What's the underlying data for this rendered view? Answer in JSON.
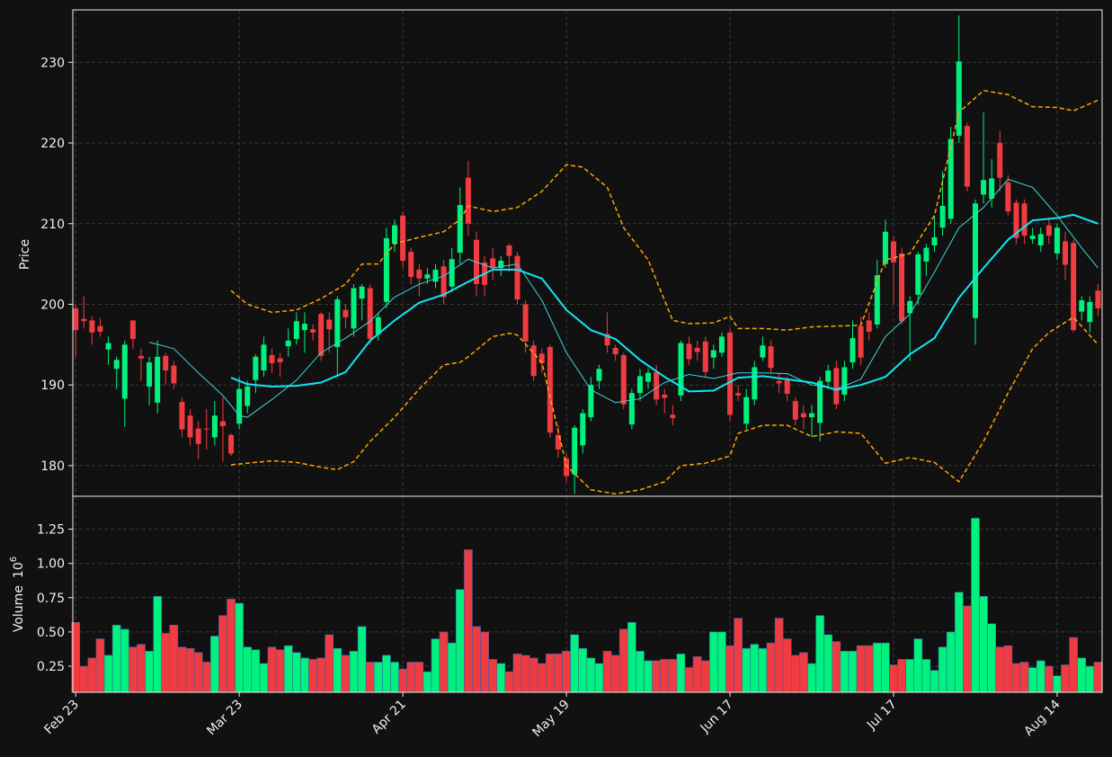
{
  "chart_data": {
    "type": "candlestick",
    "ylabel": "Price",
    "categories": [
      "Feb 23",
      null,
      null,
      null,
      null,
      null,
      null,
      null,
      null,
      null,
      null,
      null,
      null,
      null,
      null,
      null,
      null,
      null,
      null,
      null,
      "Mar 23",
      null,
      null,
      null,
      null,
      null,
      null,
      null,
      null,
      null,
      null,
      null,
      null,
      null,
      null,
      null,
      null,
      null,
      null,
      null,
      "Apr 21",
      null,
      null,
      null,
      null,
      null,
      null,
      null,
      null,
      null,
      null,
      null,
      null,
      null,
      null,
      null,
      null,
      null,
      null,
      null,
      "May 19",
      null,
      null,
      null,
      null,
      null,
      null,
      null,
      null,
      null,
      null,
      null,
      null,
      null,
      null,
      null,
      null,
      null,
      null,
      null,
      "Jun 17",
      null,
      null,
      null,
      null,
      null,
      null,
      null,
      null,
      null,
      null,
      null,
      null,
      null,
      null,
      null,
      null,
      null,
      null,
      null,
      "Jul 17",
      null,
      null,
      null,
      null,
      null,
      null,
      null,
      null,
      null,
      null,
      null,
      null,
      null,
      null,
      null,
      null,
      null,
      null,
      null,
      "Aug 14",
      null,
      null,
      null,
      null,
      null
    ],
    "xlim": [
      -0.35,
      125.5
    ],
    "xticks": [
      0,
      20,
      40,
      60,
      80,
      100,
      120
    ],
    "ylim": [
      176.2,
      236.5
    ],
    "yticks": [
      180,
      190,
      200,
      210,
      220,
      230
    ],
    "grid": true,
    "up_color": "#00f27e",
    "down_color": "#f03c41",
    "open": [
      199.5,
      198.2,
      198,
      197.3,
      194.4,
      192,
      188.3,
      198,
      193.6,
      189.8,
      187.8,
      193.6,
      192.4,
      187.9,
      186.2,
      184.6,
      184.6,
      183.5,
      185.5,
      183.8,
      185.2,
      187.4,
      190.6,
      191.8,
      193.7,
      193.3,
      194.8,
      195.7,
      196.8,
      196.9,
      198.8,
      198.1,
      194.7,
      199.3,
      197,
      200.7,
      202,
      196.3,
      200.3,
      207.5,
      211,
      206.5,
      204.3,
      203.2,
      202.8,
      204.7,
      202.2,
      206.4,
      215.7,
      208,
      205.2,
      205.7,
      204.5,
      207.3,
      206,
      200,
      194.9,
      193.9,
      194.7,
      183.8,
      180.9,
      178.9,
      182.5,
      186,
      190.5,
      196.3,
      194.6,
      193.7,
      185.1,
      189,
      190.4,
      191.6,
      188.8,
      186.3,
      188.7,
      195.1,
      194.6,
      195.4,
      193.4,
      194,
      196.5,
      189,
      185.2,
      188.2,
      193.4,
      194.8,
      190.5,
      190.6,
      188,
      186.5,
      186,
      185.3,
      190.4,
      192.1,
      188.8,
      192.8,
      197.3,
      198,
      197.5,
      205,
      207.8,
      206.3,
      198.9,
      201.2,
      205.3,
      207.3,
      209.5,
      210.6,
      220.9,
      222.1,
      198.3,
      213.6,
      213.1,
      220,
      215.1,
      212.6,
      212.5,
      208.1,
      207.3,
      209.8,
      206.3,
      207.8,
      207.6,
      199.1,
      197.8,
      201.7
    ],
    "high": [
      200,
      201,
      198.5,
      198.3,
      196,
      193.5,
      195.5,
      198,
      194.5,
      193.5,
      195.5,
      194,
      193,
      188.5,
      187,
      185.5,
      187,
      188,
      188.5,
      184,
      191,
      190.5,
      193.8,
      196,
      194.5,
      194,
      197,
      199,
      199,
      197.5,
      199,
      199,
      201,
      200,
      202.5,
      202.5,
      202.5,
      199,
      209.5,
      210.5,
      211.5,
      207,
      205,
      204.5,
      205,
      205.5,
      207,
      214.5,
      217.8,
      209,
      206,
      207,
      206,
      207.5,
      206.5,
      200.5,
      195.5,
      194.5,
      195,
      185,
      181.5,
      185,
      187,
      191,
      192.5,
      199,
      195,
      194,
      189.5,
      192,
      192,
      192.5,
      189.5,
      187.5,
      195.5,
      196,
      195.5,
      196,
      195,
      196.5,
      197,
      190,
      189.5,
      193,
      196,
      195.5,
      191.5,
      191,
      188.5,
      187.5,
      187.5,
      191,
      192.5,
      193,
      193,
      198,
      198.5,
      199,
      205.5,
      210.5,
      208.5,
      207,
      201,
      206.5,
      207.5,
      211,
      216.5,
      222,
      235.8,
      222.5,
      213,
      223.8,
      218,
      221.5,
      216,
      213,
      213,
      209.5,
      209.5,
      210.5,
      210,
      209,
      208,
      201,
      201,
      202.5
    ],
    "low": [
      193.5,
      197,
      195,
      196,
      192.5,
      189.5,
      184.8,
      194.5,
      190.5,
      187.5,
      186.5,
      190,
      189.5,
      183.5,
      182.5,
      180.8,
      182,
      182.5,
      180.5,
      181.2,
      184.5,
      186.5,
      189,
      191,
      191.5,
      191,
      193.5,
      195,
      194,
      195.5,
      193,
      194,
      191,
      197,
      196,
      198,
      195,
      195.5,
      199.5,
      206.5,
      204.5,
      202.5,
      201,
      202.5,
      202,
      200,
      201.5,
      205,
      208.5,
      201,
      201,
      203,
      203.5,
      204,
      200,
      194,
      190.5,
      191.5,
      183.5,
      181,
      178,
      176.5,
      181.5,
      185.5,
      189.5,
      194,
      193,
      187,
      184.5,
      188,
      189.5,
      187.5,
      186.5,
      185,
      188,
      192.5,
      193,
      191,
      192,
      193.5,
      185.5,
      188,
      184.5,
      187.5,
      193,
      191.5,
      189,
      188,
      185,
      184.5,
      183.5,
      183,
      189.5,
      187,
      188,
      192,
      192.5,
      195.5,
      197,
      204.5,
      200,
      197.5,
      193,
      200,
      203.5,
      206.5,
      208.5,
      210,
      220,
      214,
      195,
      212.5,
      212,
      214,
      211,
      207.5,
      207.5,
      207.5,
      206.5,
      207.5,
      205.5,
      203,
      196.5,
      198,
      196.5,
      198.5
    ],
    "close": [
      196.8,
      197.9,
      196.5,
      196.6,
      195.2,
      193.1,
      195,
      195.7,
      193.3,
      192.8,
      193.5,
      191.8,
      190.2,
      184.5,
      183.5,
      182.7,
      184.5,
      186.2,
      184.9,
      181.5,
      189.5,
      189.8,
      193.5,
      195,
      192.7,
      192.8,
      195.5,
      197.9,
      197.6,
      196.5,
      193.6,
      196.9,
      200.6,
      198.4,
      202,
      202.2,
      195.7,
      198.4,
      208.2,
      209.8,
      205.4,
      203.4,
      203.2,
      203.7,
      204.3,
      200.9,
      205.6,
      212.3,
      210,
      202.5,
      202.4,
      204.5,
      205.4,
      206,
      200.6,
      195.4,
      191.1,
      192.7,
      184.1,
      182,
      178.7,
      184.7,
      186.5,
      190,
      192,
      194.9,
      193.8,
      187.6,
      189,
      191.1,
      191.5,
      188.2,
      188.4,
      185.9,
      195.2,
      193.2,
      194.1,
      191.6,
      194.3,
      196,
      186.3,
      188.7,
      188.5,
      192.2,
      194.9,
      192.1,
      190.2,
      188.9,
      185.7,
      186,
      186.5,
      190.5,
      191.8,
      187.6,
      192.2,
      195.8,
      193.4,
      196.6,
      203.6,
      209,
      205.2,
      197.9,
      200.4,
      206.2,
      207,
      208.3,
      212.2,
      220.5,
      230.1,
      214.6,
      212.5,
      215.4,
      215.6,
      215.7,
      211.5,
      208.2,
      208.5,
      208.5,
      208.7,
      208.5,
      209.5,
      204.9,
      196.8,
      200.5,
      200.3,
      199.5
    ],
    "series": [
      {
        "color": "#3fd6d6",
        "linewidth": 1,
        "dashed": false,
        "x": [
          9,
          12,
          15,
          18,
          20,
          21,
          24,
          27,
          30,
          33,
          36,
          39,
          42,
          45,
          48,
          51,
          54,
          57,
          60,
          63,
          66,
          69,
          72,
          75,
          78,
          81,
          84,
          87,
          90,
          93,
          96,
          99,
          102,
          105,
          108,
          111,
          114,
          117,
          120,
          123,
          125
        ],
        "values": [
          195.3,
          194.5,
          191.5,
          188.7,
          186.2,
          186.0,
          188.2,
          190.6,
          194.0,
          195.8,
          197.9,
          200.9,
          202.5,
          203.5,
          205.6,
          204.5,
          205.0,
          200.5,
          194.0,
          189.4,
          187.8,
          188.3,
          190.3,
          191.3,
          190.8,
          191.5,
          191.5,
          191.4,
          190.0,
          189.5,
          190.7,
          196.0,
          198.8,
          204.0,
          209.5,
          212.0,
          215.5,
          214.5,
          211.0,
          207.0,
          204.5
        ]
      },
      {
        "color": "#12e6f5",
        "linewidth": 2,
        "dashed": false,
        "x": [
          19,
          21,
          24,
          27,
          30,
          33,
          36,
          39,
          42,
          45,
          48,
          51,
          54,
          57,
          60,
          63,
          66,
          69,
          72,
          75,
          78,
          81,
          84,
          87,
          90,
          93,
          96,
          99,
          102,
          105,
          108,
          111,
          114,
          117,
          120,
          122,
          125
        ],
        "values": [
          190.9,
          190.1,
          189.8,
          189.9,
          190.3,
          191.6,
          195.5,
          198.0,
          200.2,
          201.2,
          202.8,
          204.3,
          204.3,
          203.2,
          199.3,
          196.8,
          195.7,
          193.1,
          191.0,
          189.2,
          189.3,
          190.9,
          191.1,
          190.7,
          190.3,
          189.4,
          190.0,
          191.0,
          193.8,
          195.8,
          200.8,
          204.5,
          208.0,
          210.4,
          210.7,
          211.1,
          210.0
        ]
      },
      {
        "color": "#ffa500",
        "linewidth": 1.5,
        "dashed": true,
        "x": [
          19,
          21,
          24,
          27,
          30,
          33,
          35,
          37,
          39,
          42,
          45,
          47,
          48,
          51,
          54,
          57,
          60,
          62,
          65,
          67,
          70,
          73,
          75,
          78,
          80,
          81,
          84,
          87,
          90,
          93,
          96,
          99,
          102,
          105,
          108,
          111,
          114,
          117,
          120,
          122,
          125
        ],
        "values": [
          201.7,
          200.0,
          199.0,
          199.3,
          200.7,
          202.5,
          205.0,
          205.0,
          207.5,
          208.3,
          209.0,
          210.5,
          212.2,
          211.5,
          212.0,
          214.0,
          217.3,
          217.0,
          214.5,
          209.5,
          205.5,
          198.0,
          197.6,
          197.7,
          198.5,
          197.0,
          197.0,
          196.8,
          197.2,
          197.3,
          197.4,
          205.5,
          206.3,
          211.0,
          223.8,
          226.5,
          226.0,
          224.5,
          224.4,
          224.0,
          225.3
        ]
      },
      {
        "color": "#ffa500",
        "linewidth": 1.5,
        "dashed": true,
        "x": [
          19,
          21,
          24,
          27,
          30,
          32,
          34,
          36,
          39,
          42,
          45,
          47,
          48,
          51,
          53,
          54,
          57,
          60,
          63,
          66,
          69,
          72,
          74,
          77,
          80,
          81,
          84,
          87,
          90,
          93,
          96,
          99,
          102,
          105,
          108,
          111,
          114,
          117,
          119,
          122,
          125
        ],
        "values": [
          180.1,
          180.3,
          180.6,
          180.4,
          179.8,
          179.5,
          180.5,
          183.0,
          186.0,
          189.5,
          192.5,
          192.8,
          193.5,
          196.0,
          196.4,
          196.2,
          192.8,
          180.0,
          177.0,
          176.5,
          177.0,
          178.0,
          180.0,
          180.3,
          181.2,
          184.0,
          185.0,
          185.0,
          183.6,
          184.2,
          184.0,
          180.3,
          181.0,
          180.4,
          178.0,
          183.0,
          189.0,
          194.5,
          196.5,
          198.4,
          195.0
        ]
      }
    ],
    "volume": {
      "ylabel": "Volume",
      "multiplier": {
        "base": "10",
        "exponent": "6"
      },
      "ylim": [
        0.06,
        1.49
      ],
      "yticks": [
        0.25,
        {
          "value": 0.5,
          "label": "0.50"
        },
        0.75,
        {
          "value": 1,
          "label": "1.00"
        },
        1.25
      ],
      "values": [
        0.57,
        0.25,
        0.31,
        0.45,
        0.33,
        0.55,
        0.52,
        0.39,
        0.41,
        0.36,
        0.76,
        0.49,
        0.55,
        0.39,
        0.38,
        0.35,
        0.28,
        0.47,
        0.62,
        0.74,
        0.71,
        0.39,
        0.37,
        0.27,
        0.39,
        0.37,
        0.4,
        0.35,
        0.31,
        0.3,
        0.31,
        0.48,
        0.38,
        0.33,
        0.36,
        0.54,
        0.28,
        0.28,
        0.33,
        0.28,
        0.23,
        0.28,
        0.28,
        0.21,
        0.45,
        0.5,
        0.42,
        0.81,
        1.1,
        0.54,
        0.5,
        0.3,
        0.27,
        0.21,
        0.34,
        0.33,
        0.31,
        0.27,
        0.34,
        0.34,
        0.36,
        0.48,
        0.38,
        0.31,
        0.27,
        0.36,
        0.33,
        0.52,
        0.57,
        0.36,
        0.29,
        0.29,
        0.3,
        0.3,
        0.34,
        0.24,
        0.32,
        0.29,
        0.5,
        0.5,
        0.4,
        0.6,
        0.38,
        0.41,
        0.38,
        0.42,
        0.6,
        0.45,
        0.33,
        0.35,
        0.27,
        0.62,
        0.48,
        0.43,
        0.36,
        0.36,
        0.4,
        0.4,
        0.42,
        0.42,
        0.26,
        0.3,
        0.3,
        0.45,
        0.3,
        0.22,
        0.39,
        0.5,
        0.79,
        0.69,
        1.33,
        0.76,
        0.56,
        0.39,
        0.4,
        0.27,
        0.28,
        0.24,
        0.29,
        0.25,
        0.18,
        0.26,
        0.46,
        0.31,
        0.25,
        0.28
      ]
    }
  }
}
